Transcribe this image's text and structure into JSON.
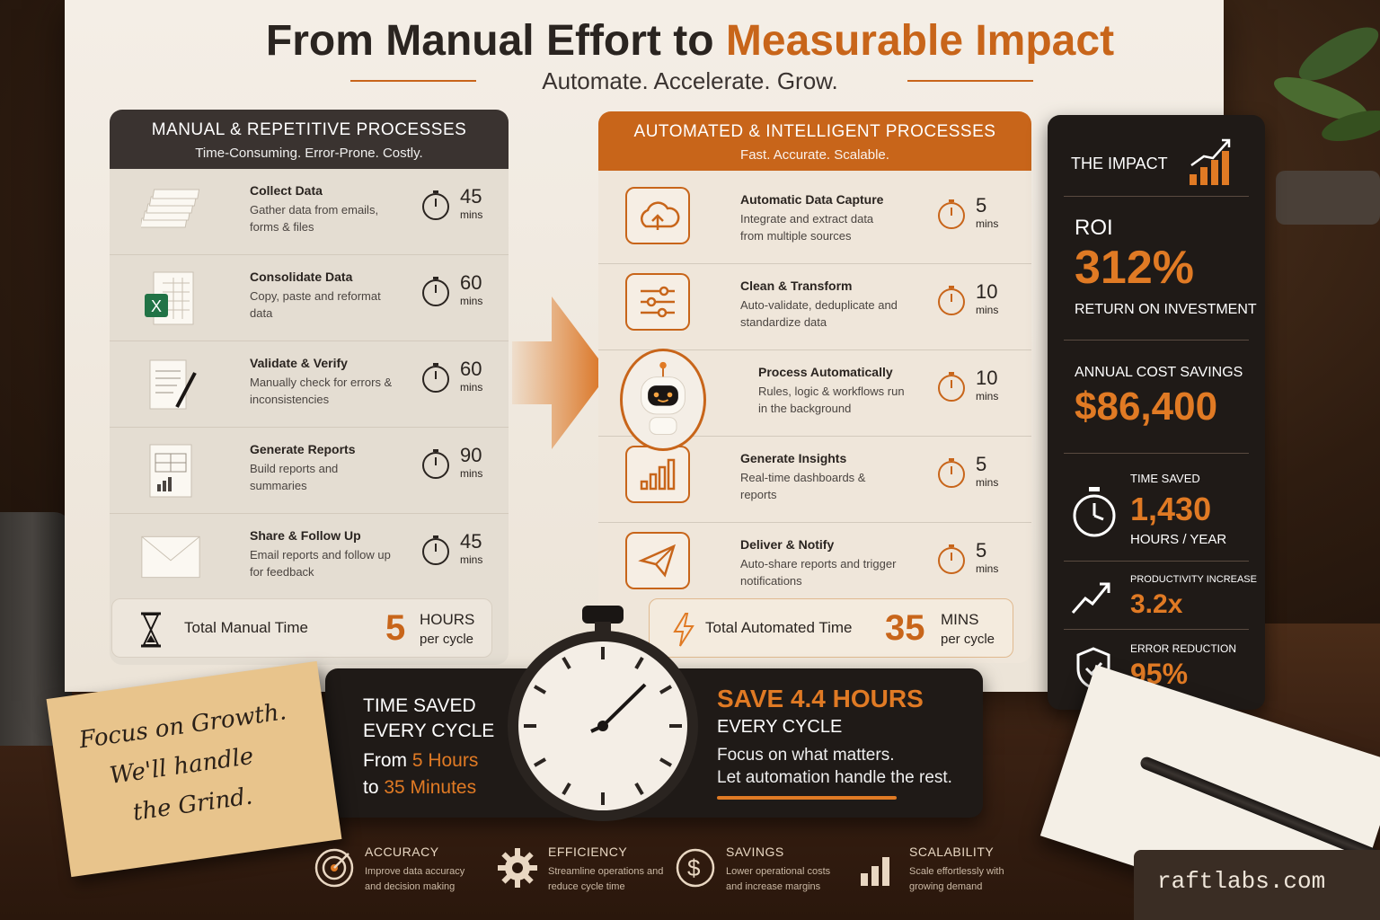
{
  "title": {
    "part1": "From Manual Effort to ",
    "part2": "Measurable Impact"
  },
  "subtitle": "Automate. Accelerate. Grow.",
  "manual": {
    "heading": "MANUAL & REPETITIVE PROCESSES",
    "sub": "Time-Consuming. Error-Prone. Costly.",
    "rows": [
      {
        "title": "Collect Data",
        "desc": "Gather data from emails, forms & files",
        "num": "45",
        "unit": "mins",
        "icon": "documents-stack-icon"
      },
      {
        "title": "Consolidate Data",
        "desc": "Copy, paste and reformat data",
        "num": "60",
        "unit": "mins",
        "icon": "spreadsheet-icon"
      },
      {
        "title": "Validate & Verify",
        "desc": "Manually check for errors & inconsistencies",
        "num": "60",
        "unit": "mins",
        "icon": "document-pen-icon"
      },
      {
        "title": "Generate Reports",
        "desc": "Build reports and summaries",
        "num": "90",
        "unit": "mins",
        "icon": "report-chart-icon"
      },
      {
        "title": "Share & Follow Up",
        "desc": "Email reports and follow up for feedback",
        "num": "45",
        "unit": "mins",
        "icon": "envelope-icon"
      }
    ],
    "total_label": "Total Manual Time",
    "total_num": "5",
    "total_unit1": "HOURS",
    "total_unit2": "per cycle"
  },
  "auto": {
    "heading": "AUTOMATED & INTELLIGENT PROCESSES",
    "sub": "Fast. Accurate. Scalable.",
    "rows": [
      {
        "title": "Automatic Data Capture",
        "desc": "Integrate and extract data from multiple sources",
        "num": "5",
        "unit": "mins",
        "icon": "cloud-upload-icon"
      },
      {
        "title": "Clean & Transform",
        "desc": "Auto-validate, deduplicate and standardize data",
        "num": "10",
        "unit": "mins",
        "icon": "sliders-icon"
      },
      {
        "title": "Process Automatically",
        "desc": "Rules, logic & workflows run in the background",
        "num": "10",
        "unit": "mins",
        "icon": "robot-icon"
      },
      {
        "title": "Generate Insights",
        "desc": "Real-time dashboards & reports",
        "num": "5",
        "unit": "mins",
        "icon": "bar-chart-icon"
      },
      {
        "title": "Deliver & Notify",
        "desc": "Auto-share reports and trigger notifications",
        "num": "5",
        "unit": "mins",
        "icon": "paper-plane-icon"
      }
    ],
    "total_label": "Total Automated Time",
    "total_num": "35",
    "total_unit1": "MINS",
    "total_unit2": "per cycle"
  },
  "impact": {
    "heading": "THE IMPACT",
    "roi_label": "ROI",
    "roi_value": "312%",
    "roi_sub": "RETURN ON INVESTMENT",
    "savings_label": "ANNUAL COST SAVINGS",
    "savings_value": "$86,400",
    "time_label": "TIME SAVED",
    "time_value": "1,430",
    "time_sub": "HOURS / YEAR",
    "prod_label": "PRODUCTIVITY INCREASE",
    "prod_value": "3.2x",
    "err_label": "ERROR REDUCTION",
    "err_value": "95%"
  },
  "banner": {
    "left1": "TIME SAVED",
    "left2": "EVERY CYCLE",
    "from_word": "From ",
    "from_val": "5 Hours",
    "to_word": "to ",
    "to_val": "35 Minutes",
    "right_save": "SAVE ",
    "right_val": "4.4 HOURS",
    "right2": "EVERY CYCLE",
    "right3": "Focus on what matters.",
    "right4": "Let automation handle the rest."
  },
  "sticky": {
    "line1": "Focus on Growth.",
    "line2": "We'll handle",
    "line3": "the Grind."
  },
  "features": [
    {
      "title": "ACCURACY",
      "desc": "Improve data accuracy and decision making",
      "icon": "target-icon"
    },
    {
      "title": "EFFICIENCY",
      "desc": "Streamline operations and reduce cycle time",
      "icon": "gear-icon"
    },
    {
      "title": "SAVINGS",
      "desc": "Lower operational costs and increase margins",
      "icon": "dollar-icon"
    },
    {
      "title": "SCALABILITY",
      "desc": "Scale effortlessly with growing demand",
      "icon": "growth-bars-icon"
    }
  ],
  "brand": "raftlabs.com",
  "colors": {
    "accent": "#c8651a",
    "dark": "#1f1a17",
    "paper": "#f4eee6"
  }
}
